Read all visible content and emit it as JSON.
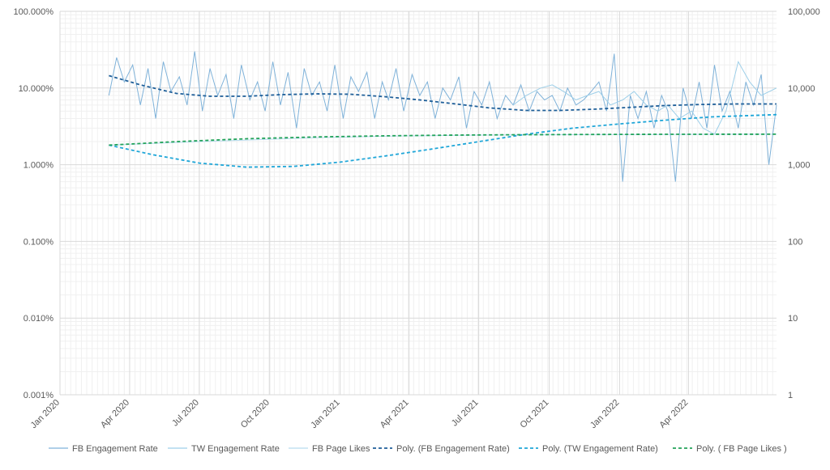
{
  "chart_data": {
    "type": "line",
    "title": "",
    "xlabel": "",
    "ylabel": "",
    "y_scale": "log",
    "grid": true,
    "legend_position": "bottom",
    "x_ticks": [
      "Jan 2020",
      "Apr 2020",
      "Jul 2020",
      "Oct 2020",
      "Jan 2021",
      "Apr 2021",
      "Jul 2021",
      "Oct 2021",
      "Jan 2022",
      "Apr 2022"
    ],
    "x_tick_dates": [
      "2020-01-01",
      "2020-04-01",
      "2020-07-01",
      "2020-10-01",
      "2021-01-01",
      "2021-04-01",
      "2021-07-01",
      "2021-10-01",
      "2022-01-01",
      "2022-04-01"
    ],
    "x_range": [
      "2020-01-01",
      "2022-07-25"
    ],
    "y_left": {
      "ticks": [
        "0.001%",
        "0.010%",
        "0.100%",
        "1.000%",
        "10.000%",
        "100.000%"
      ],
      "tick_values": [
        0.001,
        0.01,
        0.1,
        1,
        10,
        100
      ],
      "range": [
        0.001,
        100
      ]
    },
    "y_right": {
      "ticks": [
        "1",
        "10",
        "100",
        "1,000",
        "10,000",
        "100,000"
      ],
      "tick_values": [
        1,
        10,
        100,
        1000,
        10000,
        100000
      ],
      "range": [
        1,
        100000
      ]
    },
    "series": [
      {
        "name": "FB Engagement Rate",
        "axis": "left",
        "style": "solid",
        "color": "#7fb2d9",
        "x": [
          "2020-03-05",
          "2020-03-15",
          "2020-03-25",
          "2020-04-05",
          "2020-04-15",
          "2020-04-25",
          "2020-05-05",
          "2020-05-15",
          "2020-05-25",
          "2020-06-05",
          "2020-06-15",
          "2020-06-25",
          "2020-07-05",
          "2020-07-15",
          "2020-07-25",
          "2020-08-05",
          "2020-08-15",
          "2020-08-25",
          "2020-09-05",
          "2020-09-15",
          "2020-09-25",
          "2020-10-05",
          "2020-10-15",
          "2020-10-25",
          "2020-11-05",
          "2020-11-15",
          "2020-11-25",
          "2020-12-05",
          "2020-12-15",
          "2020-12-25",
          "2021-01-05",
          "2021-01-15",
          "2021-01-25",
          "2021-02-05",
          "2021-02-15",
          "2021-02-25",
          "2021-03-05",
          "2021-03-15",
          "2021-03-25",
          "2021-04-05",
          "2021-04-15",
          "2021-04-25",
          "2021-05-05",
          "2021-05-15",
          "2021-05-25",
          "2021-06-05",
          "2021-06-15",
          "2021-06-25",
          "2021-07-05",
          "2021-07-15",
          "2021-07-25",
          "2021-08-05",
          "2021-08-15",
          "2021-08-25",
          "2021-09-05",
          "2021-09-15",
          "2021-09-25",
          "2021-10-05",
          "2021-10-15",
          "2021-10-25",
          "2021-11-05",
          "2021-11-15",
          "2021-11-25",
          "2021-12-05",
          "2021-12-15",
          "2021-12-25",
          "2022-01-05",
          "2022-01-15",
          "2022-01-25",
          "2022-02-05",
          "2022-02-15",
          "2022-02-25",
          "2022-03-05",
          "2022-03-15",
          "2022-03-25",
          "2022-04-05",
          "2022-04-15",
          "2022-04-25",
          "2022-05-05",
          "2022-05-15",
          "2022-05-25",
          "2022-06-05",
          "2022-06-15",
          "2022-06-25",
          "2022-07-05",
          "2022-07-15",
          "2022-07-25"
        ],
        "values": [
          8,
          25,
          12,
          20,
          6,
          18,
          4,
          22,
          9,
          14,
          6,
          30,
          5,
          18,
          8,
          15,
          4,
          20,
          7,
          12,
          5,
          22,
          6,
          16,
          3,
          18,
          8,
          12,
          5,
          20,
          4,
          14,
          9,
          16,
          4,
          12,
          7,
          18,
          5,
          15,
          8,
          12,
          4,
          10,
          7,
          14,
          3,
          9,
          6,
          12,
          4,
          8,
          6,
          11,
          5,
          9,
          7,
          8,
          5,
          10,
          6,
          7,
          9,
          12,
          5,
          28,
          0.6,
          8,
          4,
          9,
          3,
          8,
          5,
          0.6,
          10,
          4,
          12,
          3,
          20,
          5,
          9,
          3,
          12,
          6,
          15,
          1.0,
          6
        ]
      },
      {
        "name": "TW Engagement Rate",
        "axis": "left",
        "style": "solid",
        "color": "#9dcfe9",
        "x": [
          "2021-08-15",
          "2021-09-01",
          "2021-09-20",
          "2021-10-05",
          "2021-10-20",
          "2021-11-05",
          "2021-11-20",
          "2021-12-05",
          "2021-12-20",
          "2022-01-05",
          "2022-01-20",
          "2022-02-05",
          "2022-02-20",
          "2022-03-05",
          "2022-03-20",
          "2022-04-05",
          "2022-04-20",
          "2022-05-05",
          "2022-05-20",
          "2022-06-05",
          "2022-06-20",
          "2022-07-05",
          "2022-07-25"
        ],
        "values": [
          6,
          8,
          10,
          11,
          9,
          7,
          8,
          9,
          6,
          7,
          9,
          6,
          5,
          6,
          4,
          5,
          3,
          2.5,
          5,
          22,
          12,
          8,
          10
        ]
      },
      {
        "name": "FB Page Likes",
        "axis": "right",
        "style": "solid",
        "color": "#b8dcef",
        "x": [
          "2020-03-05",
          "2020-06-01",
          "2020-09-01",
          "2020-12-01",
          "2021-03-01",
          "2021-06-01",
          "2021-09-01",
          "2021-12-01",
          "2022-03-01",
          "2022-07-25"
        ],
        "values": [
          1800,
          1950,
          2100,
          2250,
          2350,
          2420,
          2450,
          2470,
          2480,
          2500
        ]
      },
      {
        "name": "Poly. (FB Engagement Rate)",
        "axis": "left",
        "style": "dashed",
        "color": "#1f5f99",
        "x": [
          "2020-03-05",
          "2020-04-15",
          "2020-06-01",
          "2020-07-15",
          "2020-09-01",
          "2020-10-15",
          "2020-12-01",
          "2021-01-15",
          "2021-03-01",
          "2021-04-15",
          "2021-06-01",
          "2021-07-15",
          "2021-09-01",
          "2021-10-15",
          "2021-12-01",
          "2022-01-15",
          "2022-03-01",
          "2022-04-15",
          "2022-06-01",
          "2022-07-25"
        ],
        "values": [
          14.5,
          11,
          8.5,
          7.8,
          7.8,
          8.2,
          8.4,
          8.3,
          7.7,
          7,
          6.2,
          5.5,
          5.1,
          5.1,
          5.3,
          5.6,
          5.9,
          6.1,
          6.2,
          6.2
        ]
      },
      {
        "name": "Poly. (TW Engagement Rate)",
        "axis": "left",
        "style": "dashed",
        "color": "#1fa6d8",
        "x": [
          "2020-03-05",
          "2020-05-01",
          "2020-07-01",
          "2020-09-01",
          "2020-11-01",
          "2021-01-01",
          "2021-03-01",
          "2021-05-01",
          "2021-07-01",
          "2021-09-01",
          "2021-11-01",
          "2022-01-01",
          "2022-03-01",
          "2022-05-01",
          "2022-07-25"
        ],
        "values": [
          1.8,
          1.35,
          1.05,
          0.93,
          0.95,
          1.08,
          1.3,
          1.6,
          2.0,
          2.5,
          3.0,
          3.4,
          3.8,
          4.2,
          4.5
        ]
      },
      {
        "name": "Poly. ( FB Page Likes )",
        "axis": "right",
        "style": "dashed",
        "color": "#23a35a",
        "x": [
          "2020-03-05",
          "2020-06-01",
          "2020-09-01",
          "2020-12-01",
          "2021-03-01",
          "2021-06-01",
          "2021-09-01",
          "2021-12-01",
          "2022-03-01",
          "2022-07-25"
        ],
        "values": [
          1800,
          2000,
          2180,
          2300,
          2380,
          2430,
          2460,
          2480,
          2490,
          2500
        ]
      }
    ]
  }
}
